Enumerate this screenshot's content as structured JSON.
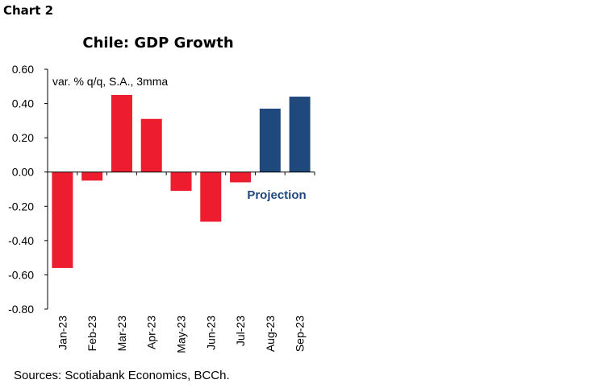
{
  "header": {
    "chart_label": "Chart 2"
  },
  "footer": {
    "sources": "Sources: Scotiabank Economics, BCCh."
  },
  "chart_data": {
    "type": "bar",
    "title": "Chile: GDP Growth",
    "subtitle": "var. % q/q, S.A., 3mma",
    "annotation": "Projection",
    "categories": [
      "Jan-23",
      "Feb-23",
      "Mar-23",
      "Apr-23",
      "May-23",
      "Jun-23",
      "Jul-23",
      "Aug-23",
      "Sep-23"
    ],
    "values": [
      -0.56,
      -0.05,
      0.45,
      0.31,
      -0.11,
      -0.29,
      -0.06,
      0.37,
      0.44
    ],
    "projection": [
      false,
      false,
      false,
      false,
      false,
      false,
      false,
      true,
      true
    ],
    "colors": {
      "actual": "#ED1C2E",
      "projection": "#1F497D"
    },
    "ylim": [
      -0.8,
      0.6
    ],
    "yticks": [
      "0.60",
      "0.40",
      "0.20",
      "0.00",
      "-0.20",
      "-0.40",
      "-0.60",
      "-0.80"
    ],
    "grid": false
  }
}
